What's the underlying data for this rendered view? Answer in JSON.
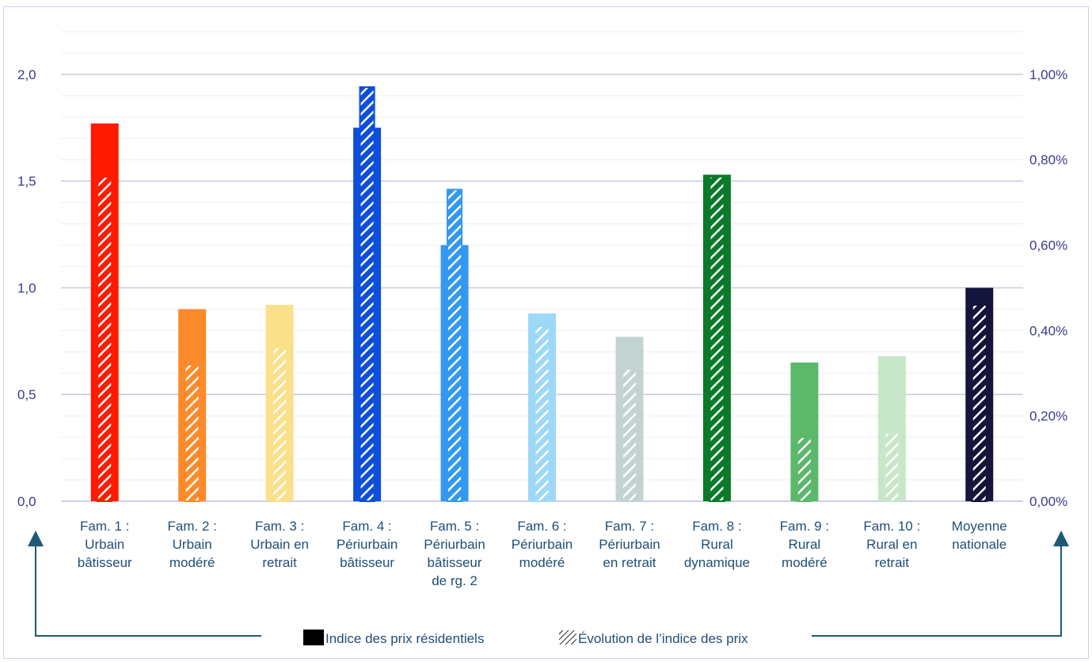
{
  "chart_data": {
    "type": "bar",
    "categories": [
      [
        "Fam. 1 :",
        "Urbain",
        "bâtisseur"
      ],
      [
        "Fam. 2 :",
        "Urbain",
        "modéré"
      ],
      [
        "Fam. 3 :",
        "Urbain en",
        "retrait"
      ],
      [
        "Fam. 4 :",
        "Périurbain",
        "bâtisseur"
      ],
      [
        "Fam. 5 :",
        "Périurbain",
        "bâtisseur",
        "de rg. 2"
      ],
      [
        "Fam. 6 :",
        "Périurbain",
        "modéré"
      ],
      [
        "Fam. 7 :",
        "Périurbain",
        "en retrait"
      ],
      [
        "Fam. 8 :",
        "Rural",
        "dynamique"
      ],
      [
        "Fam. 9 :",
        "Rural",
        "modéré"
      ],
      [
        "Fam. 10 :",
        "Rural en",
        "retrait"
      ],
      [
        "Moyenne",
        "nationale"
      ]
    ],
    "colors": [
      "#ff1a00",
      "#ff8a2a",
      "#fbe08a",
      "#0d4fdb",
      "#3399f0",
      "#9ed8f7",
      "#c2d3d2",
      "#0a7a2a",
      "#5cb86a",
      "#c8e6c9",
      "#14143c"
    ],
    "series": [
      {
        "name": "Indice des prix résidentiels",
        "axis": "left",
        "values": [
          1.77,
          0.9,
          0.92,
          1.75,
          1.2,
          0.88,
          0.77,
          1.53,
          0.65,
          0.68,
          1.0
        ]
      },
      {
        "name": "Évolution de l’indice des prix",
        "axis": "right",
        "values": [
          0.76,
          0.32,
          0.36,
          0.97,
          0.73,
          0.41,
          0.31,
          0.76,
          0.15,
          0.16,
          0.46
        ]
      }
    ],
    "yleft": {
      "min": 0,
      "max": 2.0,
      "ticks": [
        "0,0",
        "0,5",
        "1,0",
        "1,5",
        "2,0"
      ]
    },
    "yright": {
      "min": 0,
      "max": 1.0,
      "ticks": [
        "0,00%",
        "0,20%",
        "0,40%",
        "0,60%",
        "0,80%",
        "1,00%"
      ]
    },
    "grid": true,
    "legend_position": "bottom"
  }
}
